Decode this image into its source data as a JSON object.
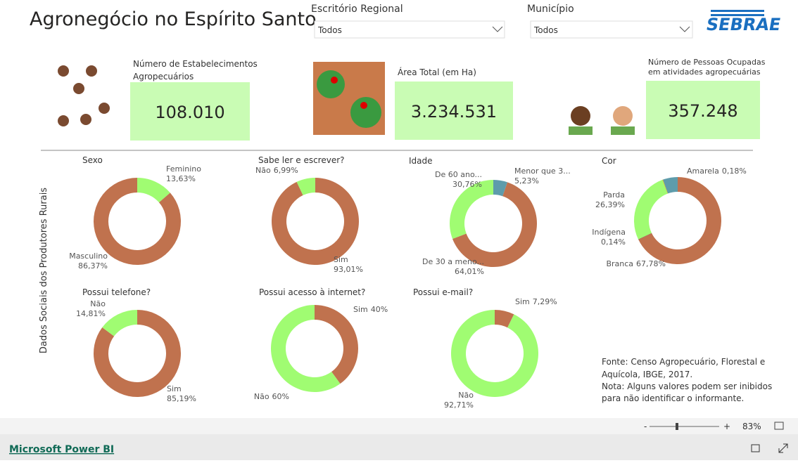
{
  "header": {
    "title": "Agronegócio no Espírito Santo",
    "logo": "SEBRAE"
  },
  "filters": [
    {
      "label": "Escritório Regional",
      "value": "Todos"
    },
    {
      "label": "Município",
      "value": "Todos"
    }
  ],
  "kpis": [
    {
      "label": "Número de Estabelecimentos Agropecuários",
      "value": "108.010"
    },
    {
      "label": "Área Total (em Ha)",
      "value": "3.234.531"
    },
    {
      "label": "Número de Pessoas Ocupadas em atividades agropecuárias",
      "value": "357.248"
    }
  ],
  "section_label": "Dados Sociais dos Produtores Rurais",
  "chart_data": [
    {
      "type": "donut",
      "title": "Sexo",
      "categories": [
        "Feminino",
        "Masculino"
      ],
      "values": [
        13.63,
        86.37
      ],
      "value_labels": [
        "13,63%",
        "86,37%"
      ],
      "colors": [
        "#a0fc72",
        "#c0724e"
      ]
    },
    {
      "type": "donut",
      "title": "Sabe ler e escrever?",
      "categories": [
        "Sim",
        "Não"
      ],
      "values": [
        93.01,
        6.99
      ],
      "value_labels": [
        "93,01%",
        "6,99%"
      ],
      "colors": [
        "#c0724e",
        "#a0fc72"
      ]
    },
    {
      "type": "donut",
      "title": "Idade",
      "categories": [
        "Menor que 3...",
        "De 30 a meno...",
        "De 60 ano..."
      ],
      "values": [
        5.23,
        64.01,
        30.76
      ],
      "value_labels": [
        "5,23%",
        "64,01%",
        "30,76%"
      ],
      "colors": [
        "#5e9cab",
        "#c0724e",
        "#a0fc72"
      ]
    },
    {
      "type": "donut",
      "title": "Cor",
      "categories": [
        "Branca",
        "Indígena",
        "Parda",
        "Amarela",
        null
      ],
      "values": [
        67.78,
        0.14,
        26.39,
        0.18,
        5.51
      ],
      "value_labels": [
        "67,78%",
        "0,14%",
        "26,39%",
        "0,18%",
        null
      ],
      "colors": [
        "#c0724e",
        "#7a4a30",
        "#a0fc72",
        "#e6b000",
        "#5e9cab"
      ]
    },
    {
      "type": "donut",
      "title": "Possui telefone?",
      "categories": [
        "Sim",
        "Não"
      ],
      "values": [
        85.19,
        14.81
      ],
      "value_labels": [
        "85,19%",
        "14,81%"
      ],
      "colors": [
        "#c0724e",
        "#a0fc72"
      ]
    },
    {
      "type": "donut",
      "title": "Possui acesso à internet?",
      "categories": [
        "Sim",
        "Não"
      ],
      "values": [
        40,
        60
      ],
      "value_labels": [
        "40%",
        "60%"
      ],
      "colors": [
        "#c0724e",
        "#a0fc72"
      ]
    },
    {
      "type": "donut",
      "title": "Possui e-mail?",
      "categories": [
        "Sim",
        "Não"
      ],
      "values": [
        7.29,
        92.71
      ],
      "value_labels": [
        "7,29%",
        "92,71%"
      ],
      "colors": [
        "#c0724e",
        "#a0fc72"
      ]
    }
  ],
  "note": [
    "Fonte: Censo Agropecuário, Florestal e",
    "Aquícola, IBGE, 2017.",
    "Nota: Alguns valores podem ser inibidos",
    "para não identificar o informante."
  ],
  "zoom": {
    "minus": "-",
    "plus": "+",
    "level": "83%"
  },
  "footer": {
    "link": "Microsoft Power BI"
  }
}
